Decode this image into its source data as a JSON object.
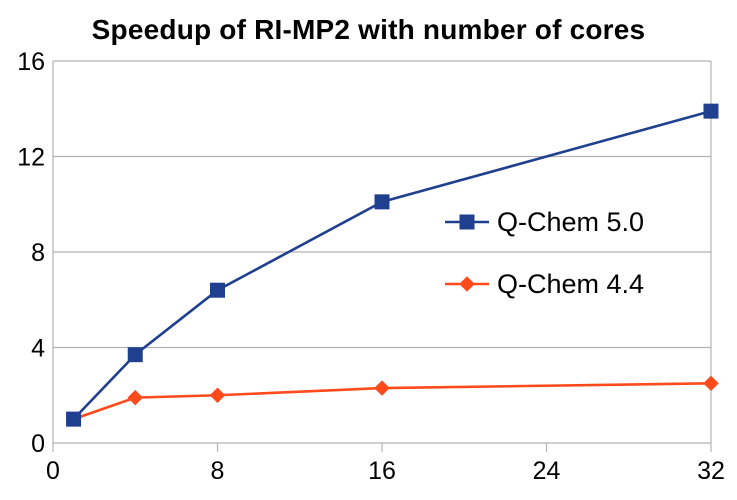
{
  "chart_data": {
    "type": "line",
    "title": "Speedup of RI-MP2 with number of cores",
    "xlabel": "",
    "ylabel": "",
    "xlim": [
      0,
      32
    ],
    "ylim": [
      0,
      16
    ],
    "x_ticks": [
      0,
      8,
      16,
      24,
      32
    ],
    "y_ticks": [
      0,
      4,
      8,
      12,
      16
    ],
    "grid": "horizontal",
    "legend_position": "right",
    "series": [
      {
        "name": "Q-Chem 5.0",
        "color": "#1f3f8f",
        "marker": "square",
        "x": [
          1,
          4,
          8,
          16,
          32
        ],
        "y": [
          1.0,
          3.7,
          6.4,
          10.1,
          13.9
        ]
      },
      {
        "name": "Q-Chem 4.4",
        "color": "#ff4a1c",
        "marker": "diamond",
        "x": [
          1,
          4,
          8,
          16,
          32
        ],
        "y": [
          1.0,
          1.9,
          2.0,
          2.3,
          2.5
        ]
      }
    ]
  }
}
